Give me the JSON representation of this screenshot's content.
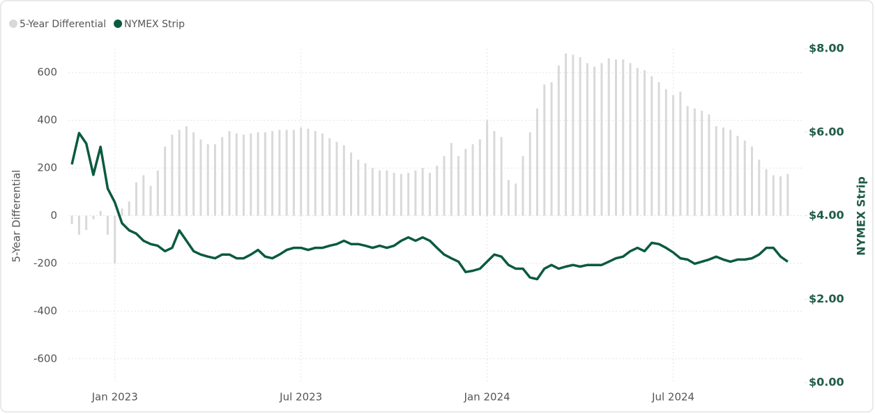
{
  "chart_data": {
    "type": "combo",
    "y_label": "5-Year Differential",
    "y2_label": "NYMEX Strip",
    "categories": [
      null,
      null,
      null,
      null,
      null,
      null,
      "Jan 2023",
      null,
      null,
      null,
      null,
      null,
      null,
      null,
      null,
      null,
      null,
      null,
      null,
      null,
      null,
      null,
      null,
      null,
      null,
      null,
      null,
      null,
      null,
      null,
      null,
      null,
      "Jul 2023",
      null,
      null,
      null,
      null,
      null,
      null,
      null,
      null,
      null,
      null,
      null,
      null,
      null,
      null,
      null,
      null,
      null,
      null,
      null,
      null,
      null,
      null,
      null,
      null,
      null,
      "Jan 2024",
      null,
      null,
      null,
      null,
      null,
      null,
      null,
      null,
      null,
      null,
      null,
      null,
      null,
      null,
      null,
      null,
      null,
      null,
      null,
      null,
      null,
      null,
      null,
      null,
      null,
      "Jul 2024",
      null,
      null,
      null,
      null,
      null,
      null,
      null,
      null,
      null,
      null,
      null,
      null,
      null,
      null,
      null,
      null
    ],
    "series": [
      {
        "name": "5-Year Differential",
        "type": "bar",
        "color": "#d9d9d9",
        "values": [
          -35,
          -80,
          -60,
          -15,
          20,
          -80,
          -200,
          30,
          60,
          140,
          170,
          125,
          190,
          290,
          340,
          360,
          375,
          350,
          320,
          300,
          300,
          330,
          355,
          345,
          340,
          345,
          350,
          350,
          355,
          360,
          360,
          360,
          370,
          365,
          355,
          345,
          325,
          310,
          295,
          265,
          235,
          220,
          200,
          190,
          190,
          180,
          175,
          180,
          190,
          200,
          180,
          210,
          250,
          305,
          250,
          280,
          300,
          320,
          400,
          355,
          330,
          150,
          135,
          250,
          350,
          450,
          550,
          560,
          630,
          680,
          675,
          665,
          640,
          625,
          640,
          660,
          655,
          655,
          640,
          620,
          610,
          585,
          560,
          530,
          505,
          520,
          460,
          450,
          440,
          425,
          375,
          370,
          360,
          335,
          315,
          290,
          235,
          195,
          170,
          165,
          175
        ]
      },
      {
        "name": "NYMEX Strip",
        "type": "line",
        "axis": "y2",
        "color": "#0b5a3f",
        "values": [
          5.23,
          5.98,
          5.73,
          4.98,
          5.65,
          4.65,
          4.32,
          3.82,
          3.65,
          3.57,
          3.4,
          3.32,
          3.28,
          3.15,
          3.23,
          3.65,
          3.4,
          3.15,
          3.07,
          3.02,
          2.98,
          3.07,
          3.07,
          2.98,
          2.98,
          3.07,
          3.18,
          3.02,
          2.98,
          3.07,
          3.18,
          3.23,
          3.23,
          3.18,
          3.23,
          3.23,
          3.28,
          3.32,
          3.4,
          3.32,
          3.32,
          3.28,
          3.23,
          3.28,
          3.23,
          3.28,
          3.4,
          3.48,
          3.4,
          3.48,
          3.4,
          3.23,
          3.07,
          2.98,
          2.9,
          2.65,
          2.68,
          2.73,
          2.9,
          3.07,
          3.02,
          2.82,
          2.73,
          2.73,
          2.52,
          2.48,
          2.73,
          2.82,
          2.73,
          2.78,
          2.82,
          2.78,
          2.82,
          2.82,
          2.82,
          2.9,
          2.98,
          3.02,
          3.15,
          3.23,
          3.15,
          3.35,
          3.32,
          3.23,
          3.12,
          2.98,
          2.95,
          2.85,
          2.9,
          2.95,
          3.02,
          2.95,
          2.9,
          2.95,
          2.95,
          2.98,
          3.07,
          3.23,
          3.23,
          3.02,
          2.9
        ]
      }
    ],
    "ylim": [
      -700,
      700
    ],
    "yticks": [
      -600,
      -400,
      -200,
      0,
      200,
      400,
      600
    ],
    "y2lim": [
      0,
      8
    ],
    "y2ticks": [
      {
        "value": 0,
        "label": "$0.00"
      },
      {
        "value": 2,
        "label": "$2.00"
      },
      {
        "value": 4,
        "label": "$4.00"
      },
      {
        "value": 6,
        "label": "$6.00"
      },
      {
        "value": 8,
        "label": "$8.00"
      }
    ],
    "grid": true
  }
}
